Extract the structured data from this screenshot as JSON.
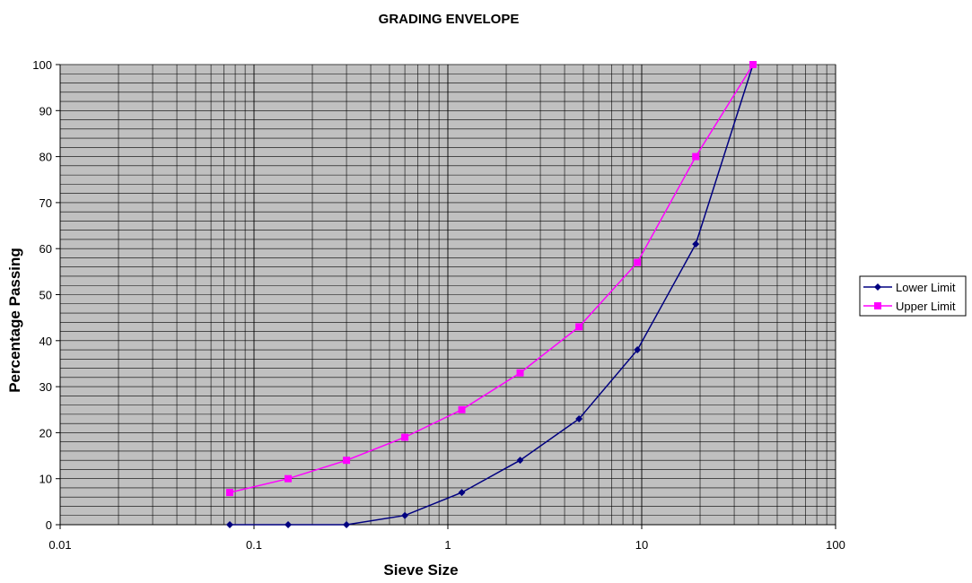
{
  "chart_data": {
    "type": "line",
    "title": "GRADING ENVELOPE",
    "xlabel": "Sieve Size",
    "ylabel": "Percentage Passing",
    "x_scale": "log",
    "xlim": [
      0.01,
      100
    ],
    "ylim": [
      0,
      100
    ],
    "x_ticks": [
      0.01,
      0.1,
      1,
      10,
      100
    ],
    "x_tick_labels": [
      "0.01",
      "0.1",
      "1",
      "10",
      "100"
    ],
    "y_ticks": [
      0,
      10,
      20,
      30,
      40,
      50,
      60,
      70,
      80,
      90,
      100
    ],
    "y_tick_labels": [
      "0",
      "10",
      "20",
      "30",
      "40",
      "50",
      "60",
      "70",
      "80",
      "90",
      "100"
    ],
    "grid": true,
    "plot_background": "#c0c0c0",
    "legend_position": "right",
    "series": [
      {
        "name": "Lower Limit",
        "color": "#000080",
        "marker": "diamond",
        "x": [
          0.075,
          0.15,
          0.3,
          0.6,
          1.18,
          2.36,
          4.75,
          9.5,
          19,
          37.5
        ],
        "y": [
          0,
          0,
          0,
          2,
          7,
          14,
          23,
          38,
          61,
          100
        ]
      },
      {
        "name": "Upper Limit",
        "color": "#ff00ff",
        "marker": "square",
        "x": [
          0.075,
          0.15,
          0.3,
          0.6,
          1.18,
          2.36,
          4.75,
          9.5,
          19,
          37.5
        ],
        "y": [
          7,
          10,
          14,
          19,
          25,
          33,
          43,
          57,
          80,
          100
        ]
      }
    ]
  }
}
